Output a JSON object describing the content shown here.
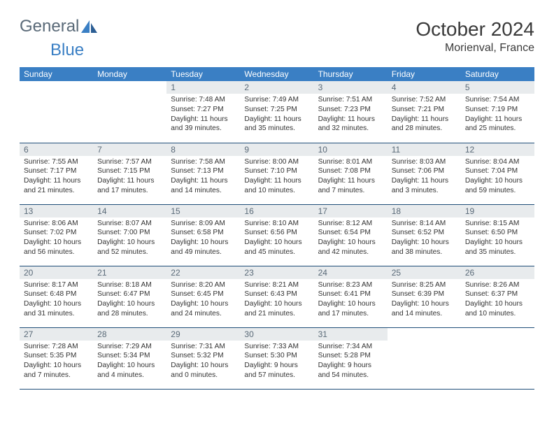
{
  "brand": {
    "part1": "General",
    "part2": "Blue"
  },
  "title": "October 2024",
  "location": "Morienval, France",
  "colors": {
    "header_bg": "#3a7fc4",
    "header_text": "#ffffff",
    "daynum_bg": "#e8ebed",
    "daynum_text": "#5a6a78",
    "border": "#1f4e79",
    "text": "#333333",
    "logo_gray": "#5a6a78",
    "logo_blue": "#3a7fc4"
  },
  "day_names": [
    "Sunday",
    "Monday",
    "Tuesday",
    "Wednesday",
    "Thursday",
    "Friday",
    "Saturday"
  ],
  "weeks": [
    [
      null,
      null,
      {
        "n": "1",
        "sr": "Sunrise: 7:48 AM",
        "ss": "Sunset: 7:27 PM",
        "dl": "Daylight: 11 hours and 39 minutes."
      },
      {
        "n": "2",
        "sr": "Sunrise: 7:49 AM",
        "ss": "Sunset: 7:25 PM",
        "dl": "Daylight: 11 hours and 35 minutes."
      },
      {
        "n": "3",
        "sr": "Sunrise: 7:51 AM",
        "ss": "Sunset: 7:23 PM",
        "dl": "Daylight: 11 hours and 32 minutes."
      },
      {
        "n": "4",
        "sr": "Sunrise: 7:52 AM",
        "ss": "Sunset: 7:21 PM",
        "dl": "Daylight: 11 hours and 28 minutes."
      },
      {
        "n": "5",
        "sr": "Sunrise: 7:54 AM",
        "ss": "Sunset: 7:19 PM",
        "dl": "Daylight: 11 hours and 25 minutes."
      }
    ],
    [
      {
        "n": "6",
        "sr": "Sunrise: 7:55 AM",
        "ss": "Sunset: 7:17 PM",
        "dl": "Daylight: 11 hours and 21 minutes."
      },
      {
        "n": "7",
        "sr": "Sunrise: 7:57 AM",
        "ss": "Sunset: 7:15 PM",
        "dl": "Daylight: 11 hours and 17 minutes."
      },
      {
        "n": "8",
        "sr": "Sunrise: 7:58 AM",
        "ss": "Sunset: 7:13 PM",
        "dl": "Daylight: 11 hours and 14 minutes."
      },
      {
        "n": "9",
        "sr": "Sunrise: 8:00 AM",
        "ss": "Sunset: 7:10 PM",
        "dl": "Daylight: 11 hours and 10 minutes."
      },
      {
        "n": "10",
        "sr": "Sunrise: 8:01 AM",
        "ss": "Sunset: 7:08 PM",
        "dl": "Daylight: 11 hours and 7 minutes."
      },
      {
        "n": "11",
        "sr": "Sunrise: 8:03 AM",
        "ss": "Sunset: 7:06 PM",
        "dl": "Daylight: 11 hours and 3 minutes."
      },
      {
        "n": "12",
        "sr": "Sunrise: 8:04 AM",
        "ss": "Sunset: 7:04 PM",
        "dl": "Daylight: 10 hours and 59 minutes."
      }
    ],
    [
      {
        "n": "13",
        "sr": "Sunrise: 8:06 AM",
        "ss": "Sunset: 7:02 PM",
        "dl": "Daylight: 10 hours and 56 minutes."
      },
      {
        "n": "14",
        "sr": "Sunrise: 8:07 AM",
        "ss": "Sunset: 7:00 PM",
        "dl": "Daylight: 10 hours and 52 minutes."
      },
      {
        "n": "15",
        "sr": "Sunrise: 8:09 AM",
        "ss": "Sunset: 6:58 PM",
        "dl": "Daylight: 10 hours and 49 minutes."
      },
      {
        "n": "16",
        "sr": "Sunrise: 8:10 AM",
        "ss": "Sunset: 6:56 PM",
        "dl": "Daylight: 10 hours and 45 minutes."
      },
      {
        "n": "17",
        "sr": "Sunrise: 8:12 AM",
        "ss": "Sunset: 6:54 PM",
        "dl": "Daylight: 10 hours and 42 minutes."
      },
      {
        "n": "18",
        "sr": "Sunrise: 8:14 AM",
        "ss": "Sunset: 6:52 PM",
        "dl": "Daylight: 10 hours and 38 minutes."
      },
      {
        "n": "19",
        "sr": "Sunrise: 8:15 AM",
        "ss": "Sunset: 6:50 PM",
        "dl": "Daylight: 10 hours and 35 minutes."
      }
    ],
    [
      {
        "n": "20",
        "sr": "Sunrise: 8:17 AM",
        "ss": "Sunset: 6:48 PM",
        "dl": "Daylight: 10 hours and 31 minutes."
      },
      {
        "n": "21",
        "sr": "Sunrise: 8:18 AM",
        "ss": "Sunset: 6:47 PM",
        "dl": "Daylight: 10 hours and 28 minutes."
      },
      {
        "n": "22",
        "sr": "Sunrise: 8:20 AM",
        "ss": "Sunset: 6:45 PM",
        "dl": "Daylight: 10 hours and 24 minutes."
      },
      {
        "n": "23",
        "sr": "Sunrise: 8:21 AM",
        "ss": "Sunset: 6:43 PM",
        "dl": "Daylight: 10 hours and 21 minutes."
      },
      {
        "n": "24",
        "sr": "Sunrise: 8:23 AM",
        "ss": "Sunset: 6:41 PM",
        "dl": "Daylight: 10 hours and 17 minutes."
      },
      {
        "n": "25",
        "sr": "Sunrise: 8:25 AM",
        "ss": "Sunset: 6:39 PM",
        "dl": "Daylight: 10 hours and 14 minutes."
      },
      {
        "n": "26",
        "sr": "Sunrise: 8:26 AM",
        "ss": "Sunset: 6:37 PM",
        "dl": "Daylight: 10 hours and 10 minutes."
      }
    ],
    [
      {
        "n": "27",
        "sr": "Sunrise: 7:28 AM",
        "ss": "Sunset: 5:35 PM",
        "dl": "Daylight: 10 hours and 7 minutes."
      },
      {
        "n": "28",
        "sr": "Sunrise: 7:29 AM",
        "ss": "Sunset: 5:34 PM",
        "dl": "Daylight: 10 hours and 4 minutes."
      },
      {
        "n": "29",
        "sr": "Sunrise: 7:31 AM",
        "ss": "Sunset: 5:32 PM",
        "dl": "Daylight: 10 hours and 0 minutes."
      },
      {
        "n": "30",
        "sr": "Sunrise: 7:33 AM",
        "ss": "Sunset: 5:30 PM",
        "dl": "Daylight: 9 hours and 57 minutes."
      },
      {
        "n": "31",
        "sr": "Sunrise: 7:34 AM",
        "ss": "Sunset: 5:28 PM",
        "dl": "Daylight: 9 hours and 54 minutes."
      },
      null,
      null
    ]
  ]
}
